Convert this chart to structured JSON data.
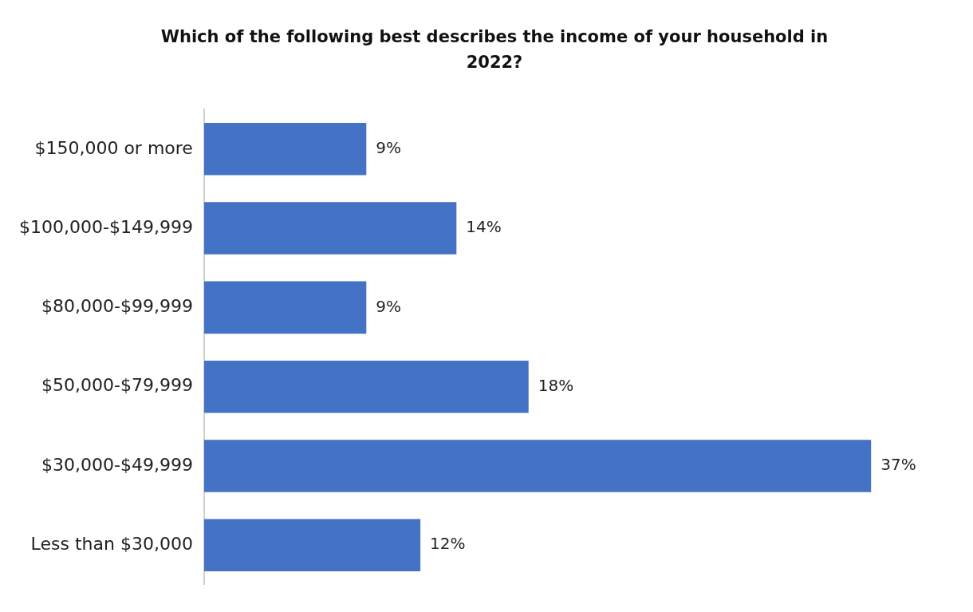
{
  "chart_data": {
    "type": "bar",
    "orientation": "horizontal",
    "title": "Which of the following best describes the income of your household in 2022?",
    "categories": [
      "$150,000 or more",
      "$100,000-$149,999",
      "$80,000-$99,999",
      "$50,000-$79,999",
      "$30,000-$49,999",
      "Less than $30,000"
    ],
    "values": [
      9,
      14,
      9,
      18,
      37,
      12
    ],
    "value_labels": [
      "9%",
      "14%",
      "9%",
      "18%",
      "37%",
      "12%"
    ],
    "color": "#4472c4",
    "tick_labels": "y",
    "grid": false,
    "legend": false
  }
}
